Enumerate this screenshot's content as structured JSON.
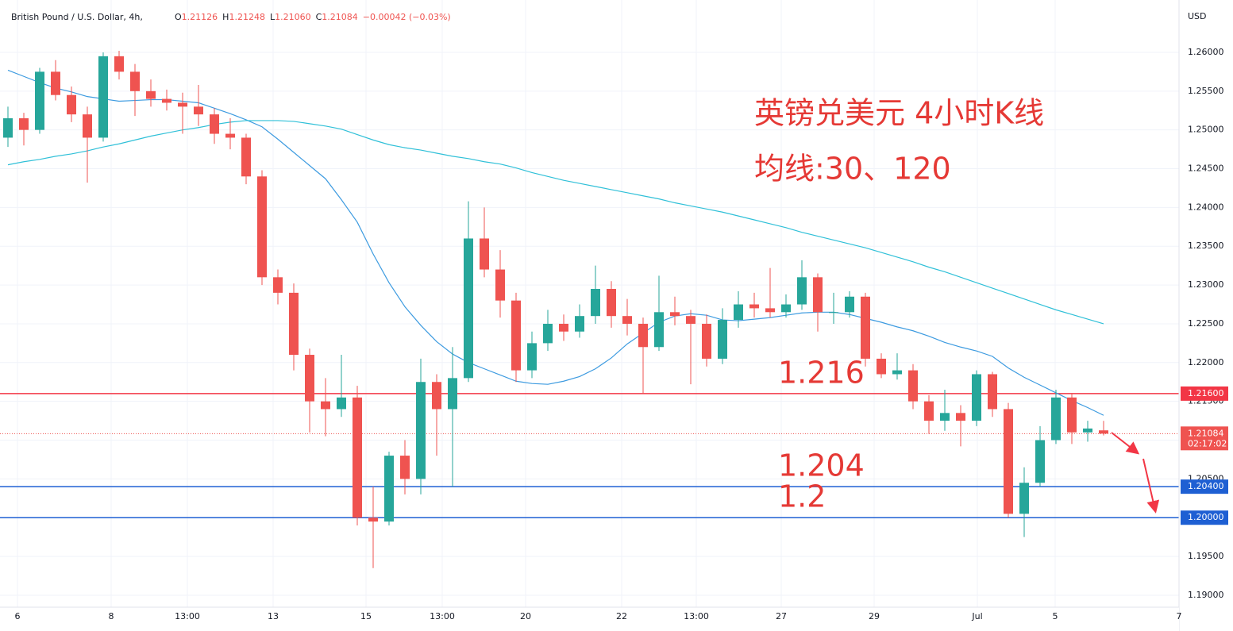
{
  "chart_data": {
    "type": "candlestick",
    "title": "British Pound / U.S. Dollar, 4h,",
    "readout": [
      [
        "O",
        "1.21126"
      ],
      [
        "H",
        "1.21248"
      ],
      [
        "L",
        "1.21060"
      ],
      [
        "C",
        "1.21084"
      ]
    ],
    "change": "−0.00042 (−0.03%)",
    "currency": "USD",
    "annotations": [
      "英镑兑美元 4小时K线",
      "均线:30、120"
    ],
    "up_color": "#26a69a",
    "down_color": "#ef5350",
    "ohlc": {
      "open": [
        1.249,
        1.2515,
        1.25,
        1.2575,
        1.2545,
        1.252,
        1.249,
        1.2595,
        1.2575,
        1.255,
        1.254,
        1.2535,
        1.253,
        1.252,
        1.2495,
        1.249,
        1.244,
        1.231,
        1.229,
        1.221,
        1.215,
        1.214,
        1.2155,
        1.2,
        1.1995,
        1.208,
        1.205,
        1.2175,
        1.214,
        1.218,
        1.236,
        1.232,
        1.228,
        1.219,
        1.2225,
        1.225,
        1.224,
        1.226,
        1.2295,
        1.226,
        1.225,
        1.222,
        1.2265,
        1.226,
        1.225,
        1.2205,
        1.2255,
        1.2275,
        1.227,
        1.2265,
        1.2275,
        1.231,
        1.2265,
        1.2265,
        1.2285,
        1.2205,
        1.2185,
        1.219,
        1.215,
        1.2125,
        1.2135,
        1.2125,
        1.2185,
        1.214,
        1.2005,
        1.2045,
        1.21,
        1.2155,
        1.211,
        1.21126
      ],
      "high": [
        1.253,
        1.2522,
        1.258,
        1.259,
        1.2556,
        1.253,
        1.26,
        1.2602,
        1.2585,
        1.2565,
        1.2552,
        1.2548,
        1.2558,
        1.2528,
        1.2515,
        1.2495,
        1.2448,
        1.232,
        1.2302,
        1.2218,
        1.218,
        1.221,
        1.217,
        1.204,
        1.2085,
        1.21,
        1.2205,
        1.2185,
        1.222,
        1.2408,
        1.24,
        1.2345,
        1.229,
        1.224,
        1.2268,
        1.2262,
        1.2275,
        1.2325,
        1.2305,
        1.2282,
        1.2258,
        1.2312,
        1.2285,
        1.2268,
        1.2262,
        1.227,
        1.2292,
        1.229,
        1.2322,
        1.2288,
        1.2332,
        1.2315,
        1.229,
        1.2292,
        1.229,
        1.2212,
        1.2212,
        1.2198,
        1.2158,
        1.2165,
        1.2145,
        1.219,
        1.2188,
        1.2148,
        1.2065,
        1.2118,
        1.2165,
        1.216,
        1.2125,
        1.21248
      ],
      "low": [
        1.2478,
        1.248,
        1.2495,
        1.2538,
        1.251,
        1.2432,
        1.2485,
        1.2565,
        1.2518,
        1.253,
        1.2525,
        1.2495,
        1.2505,
        1.2482,
        1.2475,
        1.243,
        1.23,
        1.2275,
        1.219,
        1.211,
        1.2105,
        1.213,
        1.199,
        1.1935,
        1.199,
        1.203,
        1.203,
        1.208,
        1.204,
        1.2175,
        1.231,
        1.2258,
        1.2175,
        1.218,
        1.2215,
        1.2228,
        1.2232,
        1.225,
        1.2245,
        1.2235,
        1.216,
        1.2215,
        1.2248,
        1.2172,
        1.2195,
        1.2198,
        1.2245,
        1.2258,
        1.2258,
        1.2258,
        1.2268,
        1.224,
        1.225,
        1.2258,
        1.2195,
        1.218,
        1.2178,
        1.214,
        1.2108,
        1.2112,
        1.2092,
        1.2118,
        1.213,
        1.2,
        1.1975,
        1.204,
        1.2095,
        1.2095,
        1.2098,
        1.2106
      ],
      "close": [
        1.2515,
        1.25,
        1.2575,
        1.2545,
        1.252,
        1.249,
        1.2595,
        1.2575,
        1.255,
        1.254,
        1.2535,
        1.253,
        1.252,
        1.2495,
        1.249,
        1.244,
        1.231,
        1.229,
        1.221,
        1.215,
        1.214,
        1.2155,
        1.2,
        1.1995,
        1.208,
        1.205,
        1.2175,
        1.214,
        1.218,
        1.236,
        1.232,
        1.228,
        1.219,
        1.2225,
        1.225,
        1.224,
        1.226,
        1.2295,
        1.226,
        1.225,
        1.222,
        1.2265,
        1.226,
        1.225,
        1.2205,
        1.2255,
        1.2275,
        1.227,
        1.2265,
        1.2275,
        1.231,
        1.2265,
        1.2265,
        1.2285,
        1.2205,
        1.2185,
        1.219,
        1.215,
        1.2125,
        1.2135,
        1.2125,
        1.2185,
        1.214,
        1.2005,
        1.2045,
        1.21,
        1.2155,
        1.211,
        1.2115,
        1.21084
      ]
    },
    "series": [
      {
        "color": "#3d9be0",
        "values": [
          1.2577,
          1.2569,
          1.2561,
          1.2554,
          1.2549,
          1.2543,
          1.254,
          1.2537,
          1.2538,
          1.2539,
          1.2539,
          1.2537,
          1.2535,
          1.2528,
          1.2521,
          1.2513,
          1.2504,
          1.2488,
          1.2471,
          1.2454,
          1.2437,
          1.241,
          1.2381,
          1.234,
          1.2303,
          1.2272,
          1.2248,
          1.2227,
          1.2211,
          1.22,
          1.2192,
          1.2184,
          1.2176,
          1.2173,
          1.2172,
          1.2176,
          1.2182,
          1.2192,
          1.2206,
          1.2224,
          1.2238,
          1.2252,
          1.226,
          1.2263,
          1.2261,
          1.2255,
          1.2254,
          1.2256,
          1.2258,
          1.2261,
          1.2264,
          1.2265,
          1.2265,
          1.2262,
          1.2257,
          1.2252,
          1.2246,
          1.2241,
          1.2234,
          1.2226,
          1.222,
          1.2215,
          1.2208,
          1.2193,
          1.2181,
          1.2171,
          1.2161,
          1.2151,
          1.2142,
          1.2132
        ]
      },
      {
        "color": "#30c0d8",
        "values": [
          1.2455,
          1.2459,
          1.2462,
          1.2466,
          1.2469,
          1.2473,
          1.2478,
          1.2482,
          1.2487,
          1.2492,
          1.2496,
          1.25,
          1.2503,
          1.2507,
          1.251,
          1.2512,
          1.2512,
          1.2512,
          1.2511,
          1.2508,
          1.2505,
          1.2501,
          1.2494,
          1.2487,
          1.2481,
          1.2477,
          1.2474,
          1.247,
          1.2466,
          1.2463,
          1.2459,
          1.2456,
          1.2451,
          1.2445,
          1.244,
          1.2435,
          1.2431,
          1.2427,
          1.2423,
          1.2419,
          1.2415,
          1.2411,
          1.2406,
          1.2402,
          1.2398,
          1.2394,
          1.2389,
          1.2384,
          1.2379,
          1.2374,
          1.2368,
          1.2363,
          1.2358,
          1.2353,
          1.2348,
          1.2342,
          1.2336,
          1.233,
          1.2323,
          1.2317,
          1.231,
          1.2303,
          1.2296,
          1.2289,
          1.2282,
          1.2275,
          1.2268,
          1.2262,
          1.2256,
          1.225
        ]
      }
    ],
    "levels": [
      {
        "value": 1.216,
        "label": "1.21600",
        "annotation": "1.216",
        "color": "#f23645"
      },
      {
        "value": 1.204,
        "label": "1.20400",
        "annotation": "1.204",
        "color": "#1e5fd3"
      },
      {
        "value": 1.2,
        "label": "1.20000",
        "annotation": "1.2",
        "color": "#1e5fd3"
      }
    ],
    "last_price": {
      "value": 1.21084,
      "label": "1.21084",
      "countdown": "02:17:02",
      "color": "#ef5350"
    },
    "xlim": [
      -0.5,
      73.75
    ],
    "xticks": [
      {
        "value": 0.6,
        "label": "6"
      },
      {
        "value": 6.5,
        "label": "8"
      },
      {
        "value": 11.3,
        "label": "13:00"
      },
      {
        "value": 16.7,
        "label": "13"
      },
      {
        "value": 22.55,
        "label": "15"
      },
      {
        "value": 27.35,
        "label": "13:00"
      },
      {
        "value": 32.6,
        "label": "20"
      },
      {
        "value": 38.65,
        "label": "22"
      },
      {
        "value": 43.35,
        "label": "13:00"
      },
      {
        "value": 48.7,
        "label": "27"
      },
      {
        "value": 54.55,
        "label": "29"
      },
      {
        "value": 61.05,
        "label": "Jul"
      },
      {
        "value": 65.95,
        "label": "5"
      },
      {
        "value": 73.75,
        "label": "7"
      }
    ],
    "ylim": [
      1.18846,
      1.26675
    ],
    "yticks": [
      {
        "value": 1.19,
        "label": "1.19000"
      },
      {
        "value": 1.195,
        "label": "1.19500"
      },
      {
        "value": 1.2,
        "label": "1.20000"
      },
      {
        "value": 1.205,
        "label": "1.20500"
      },
      {
        "value": 1.21,
        "label": "1.21000"
      },
      {
        "value": 1.215,
        "label": "1.21500"
      },
      {
        "value": 1.22,
        "label": "1.22000"
      },
      {
        "value": 1.225,
        "label": "1.22500"
      },
      {
        "value": 1.23,
        "label": "1.23000"
      },
      {
        "value": 1.235,
        "label": "1.23500"
      },
      {
        "value": 1.24,
        "label": "1.24000"
      },
      {
        "value": 1.245,
        "label": "1.24500"
      },
      {
        "value": 1.25,
        "label": "1.25000"
      },
      {
        "value": 1.255,
        "label": "1.25500"
      },
      {
        "value": 1.26,
        "label": "1.26000"
      }
    ],
    "grid": true
  }
}
